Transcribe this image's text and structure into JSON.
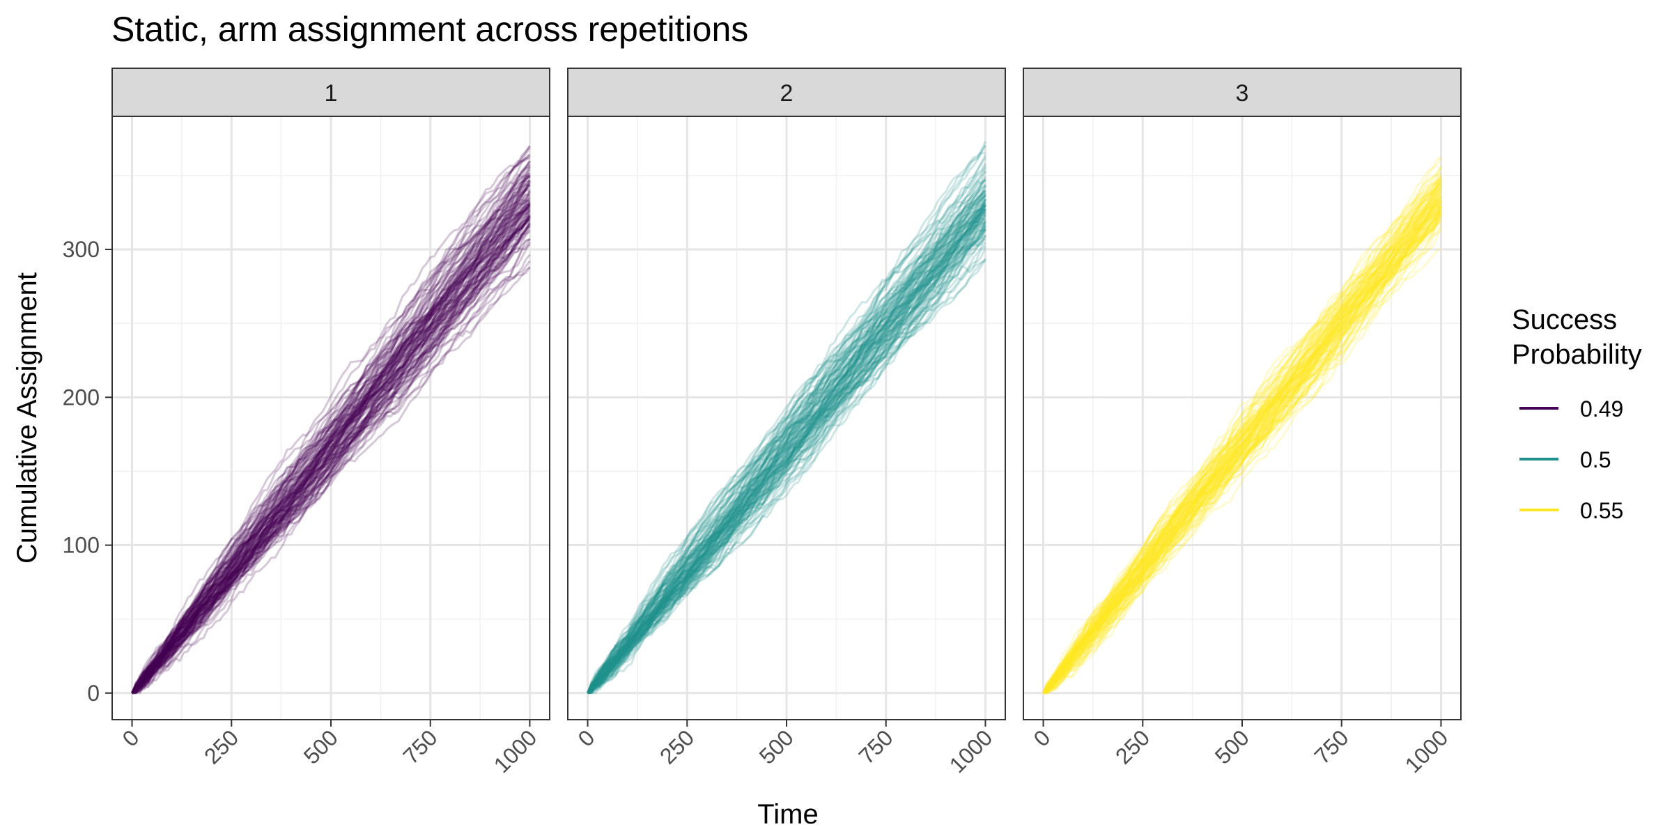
{
  "chart_data": {
    "type": "line",
    "title": "Static, arm assignment across repetitions",
    "xlabel": "Time",
    "ylabel": "Cumulative Assignment",
    "xlim": [
      -50,
      1050
    ],
    "ylim": [
      -18,
      390
    ],
    "x_ticks": [
      0,
      250,
      500,
      750,
      1000
    ],
    "x_tick_labels": [
      "0",
      "250",
      "500",
      "750",
      "1000"
    ],
    "y_ticks": [
      0,
      100,
      200,
      300
    ],
    "y_tick_labels": [
      "0",
      "100",
      "200",
      "300"
    ],
    "grid": true,
    "legend": {
      "title_lines": [
        "Success",
        "Probability"
      ],
      "placement": "right",
      "entries": [
        {
          "label": "0.49",
          "color": "#440154"
        },
        {
          "label": "0.5",
          "color": "#21908C"
        },
        {
          "label": "0.55",
          "color": "#FDE725"
        }
      ]
    },
    "panels": [
      {
        "strip_label": "1",
        "success_probability": 0.49,
        "color": "#440154",
        "n_repetitions": 100,
        "final_value_range": [
          288,
          370
        ],
        "mean_final_value": 330,
        "line_alpha": 0.22
      },
      {
        "strip_label": "2",
        "success_probability": 0.5,
        "color": "#21908C",
        "n_repetitions": 100,
        "final_value_range": [
          292,
          373
        ],
        "mean_final_value": 330,
        "line_alpha": 0.22
      },
      {
        "strip_label": "3",
        "success_probability": 0.55,
        "color": "#FDE725",
        "n_repetitions": 100,
        "final_value_range": [
          300,
          362
        ],
        "mean_final_value": 333,
        "line_alpha": 0.22
      }
    ]
  }
}
